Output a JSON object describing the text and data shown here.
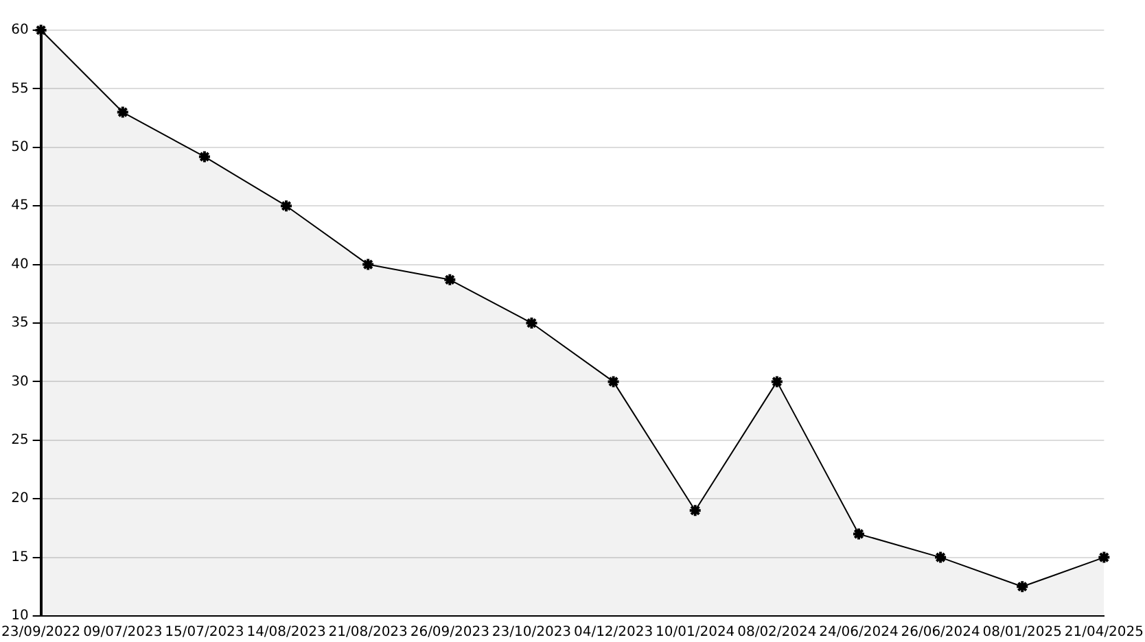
{
  "chart_data": {
    "type": "area",
    "categories": [
      "23/09/2022",
      "09/07/2023",
      "15/07/2023",
      "14/08/2023",
      "21/08/2023",
      "26/09/2023",
      "23/10/2023",
      "04/12/2023",
      "10/01/2024",
      "08/02/2024",
      "24/06/2024",
      "26/06/2024",
      "08/01/2025",
      "21/04/2025"
    ],
    "series": [
      {
        "color": "#000000",
        "values": [
          60,
          53,
          49.2,
          45,
          40,
          38.7,
          35,
          30,
          19,
          30,
          17,
          15,
          12.5,
          15
        ]
      }
    ],
    "ylim": [
      10,
      60
    ],
    "yticks": [
      10,
      15,
      20,
      25,
      30,
      35,
      40,
      45,
      50,
      55,
      60
    ],
    "grid": "y",
    "legend": false,
    "marker": "cross",
    "line_style": "solid"
  }
}
